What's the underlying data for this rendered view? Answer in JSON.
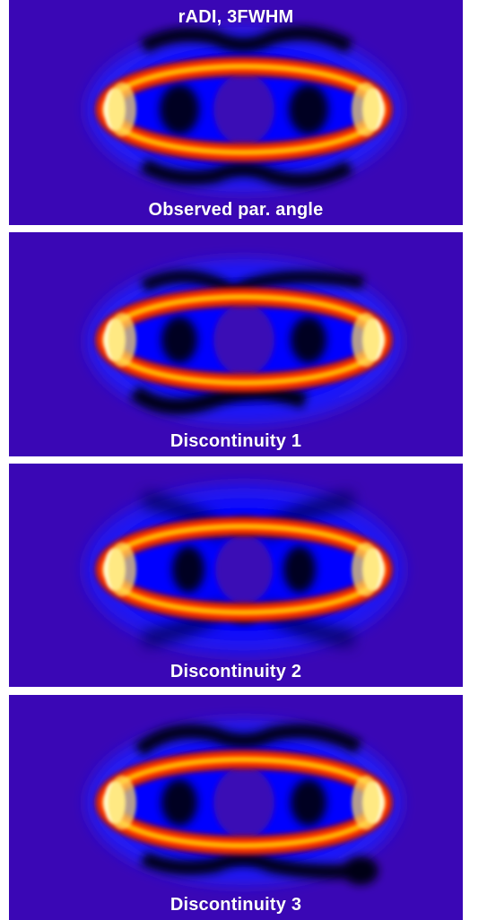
{
  "figure": {
    "title": "rADI, 3FWHM",
    "panels": [
      {
        "label": "Observed par. angle",
        "variant": "observed"
      },
      {
        "label": "Discontinuity 1",
        "variant": "d1"
      },
      {
        "label": "Discontinuity 2",
        "variant": "d2"
      },
      {
        "label": "Discontinuity 3",
        "variant": "d3"
      }
    ]
  },
  "colors": {
    "background": "#3a07b5",
    "ring_core": "#ffffe0",
    "ring_mid": "#ff4800",
    "ring_edge": "#d40000",
    "halo": "#0000ff",
    "dark_lobes": "#000000",
    "caption_text": "#ffffff"
  }
}
